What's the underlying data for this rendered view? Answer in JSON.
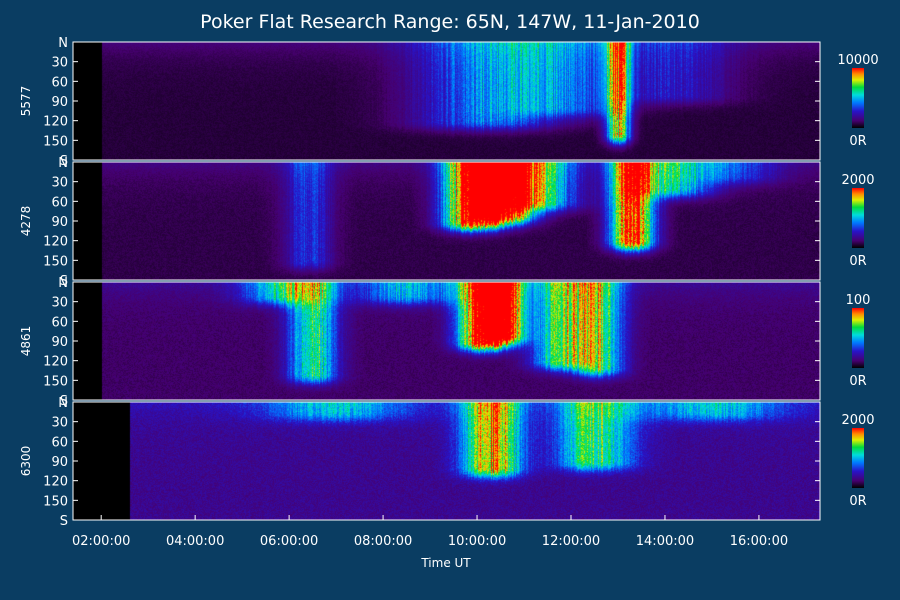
{
  "chart_data": {
    "type": "heatmap",
    "title": "Poker Flat Research Range: 65N, 147W, 11-Jan-2010",
    "xlabel": "Time UT",
    "x_ticks": [
      "02:00:00",
      "04:00:00",
      "06:00:00",
      "08:00:00",
      "10:00:00",
      "12:00:00",
      "14:00:00",
      "16:00:00"
    ],
    "x_tick_hours": [
      2,
      4,
      6,
      8,
      10,
      12,
      14,
      16
    ],
    "xlim_hours": [
      1.4,
      17.3
    ],
    "y_ticks": [
      "N",
      "30",
      "60",
      "90",
      "120",
      "150",
      "S"
    ],
    "y_tick_values": [
      0,
      30,
      60,
      90,
      120,
      150,
      180
    ],
    "ylim": [
      0,
      180
    ],
    "panels": [
      {
        "ylabel": "5577",
        "colorbar": {
          "max_label": "10000",
          "min_label": "0R",
          "max": 10000,
          "min": 0
        },
        "features": [
          {
            "t": 10.2,
            "w": 1.5,
            "amp": 0.35,
            "ymin": 0,
            "ymax": 120
          },
          {
            "t": 11.8,
            "w": 1.2,
            "amp": 0.28,
            "ymin": 0,
            "ymax": 100
          },
          {
            "t": 13.0,
            "w": 0.25,
            "amp": 0.75,
            "ymin": 0,
            "ymax": 140
          },
          {
            "t": 14.2,
            "w": 1.2,
            "amp": 0.2,
            "ymin": 0,
            "ymax": 80
          }
        ],
        "background": 0.08,
        "data_start_hour": 2.0
      },
      {
        "ylabel": "4278",
        "colorbar": {
          "max_label": "2000",
          "min_label": "0R",
          "max": 2000,
          "min": 0
        },
        "features": [
          {
            "t": 9.9,
            "w": 0.6,
            "amp": 1.0,
            "ymin": 0,
            "ymax": 90
          },
          {
            "t": 10.6,
            "w": 0.6,
            "amp": 0.9,
            "ymin": 0,
            "ymax": 80
          },
          {
            "t": 11.3,
            "w": 0.8,
            "amp": 0.55,
            "ymin": 0,
            "ymax": 60
          },
          {
            "t": 13.3,
            "w": 0.45,
            "amp": 1.0,
            "ymin": 0,
            "ymax": 120
          },
          {
            "t": 14.2,
            "w": 0.8,
            "amp": 0.45,
            "ymin": 0,
            "ymax": 40
          },
          {
            "t": 6.4,
            "w": 0.5,
            "amp": 0.25,
            "ymin": 0,
            "ymax": 150
          },
          {
            "t": 15.5,
            "w": 0.9,
            "amp": 0.22,
            "ymin": 0,
            "ymax": 20
          }
        ],
        "background": 0.1,
        "data_start_hour": 2.0
      },
      {
        "ylabel": "4861",
        "colorbar": {
          "max_label": "100",
          "min_label": "0R",
          "max": 100,
          "min": 0
        },
        "features": [
          {
            "t": 6.5,
            "w": 0.5,
            "amp": 0.55,
            "ymin": 0,
            "ymax": 140
          },
          {
            "t": 10.1,
            "w": 0.5,
            "amp": 1.0,
            "ymin": 0,
            "ymax": 90
          },
          {
            "t": 10.6,
            "w": 0.4,
            "amp": 0.9,
            "ymin": 0,
            "ymax": 80
          },
          {
            "t": 11.8,
            "w": 0.6,
            "amp": 0.6,
            "ymin": 0,
            "ymax": 120
          },
          {
            "t": 12.6,
            "w": 0.5,
            "amp": 0.55,
            "ymin": 0,
            "ymax": 130
          },
          {
            "t": 5.8,
            "w": 0.8,
            "amp": 0.4,
            "ymin": 0,
            "ymax": 20
          },
          {
            "t": 8.5,
            "w": 1.0,
            "amp": 0.35,
            "ymin": 0,
            "ymax": 20
          }
        ],
        "background": 0.14,
        "data_start_hour": 2.0
      },
      {
        "ylabel": "6300",
        "colorbar": {
          "max_label": "2000",
          "min_label": "0R",
          "max": 2000,
          "min": 0
        },
        "features": [
          {
            "t": 10.3,
            "w": 0.6,
            "amp": 0.75,
            "ymin": 0,
            "ymax": 100
          },
          {
            "t": 12.5,
            "w": 0.8,
            "amp": 0.5,
            "ymin": 0,
            "ymax": 90
          },
          {
            "t": 7.0,
            "w": 1.5,
            "amp": 0.3,
            "ymin": 0,
            "ymax": 15
          },
          {
            "t": 15.0,
            "w": 1.5,
            "amp": 0.3,
            "ymin": 0,
            "ymax": 15
          }
        ],
        "background": 0.22,
        "data_start_hour": 2.6
      }
    ]
  }
}
